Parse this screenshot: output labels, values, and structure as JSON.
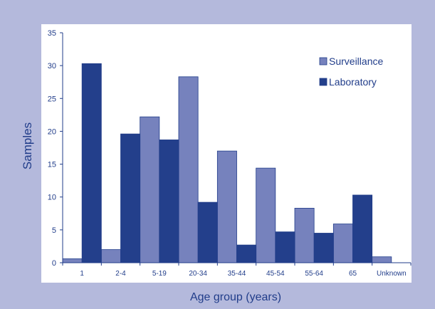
{
  "chart_data": {
    "type": "bar",
    "categories": [
      "1",
      "2-4",
      "5-19",
      "20-34",
      "35-44",
      "45-54",
      "55-64",
      "65",
      "Unknown"
    ],
    "series": [
      {
        "name": "Surveillance",
        "values": [
          0.6,
          2.0,
          22.2,
          28.3,
          17.0,
          14.4,
          8.3,
          5.9,
          0.9
        ],
        "color": "#7682bd"
      },
      {
        "name": "Laboratory",
        "values": [
          30.3,
          19.6,
          18.7,
          9.2,
          2.7,
          4.7,
          4.5,
          10.3,
          0
        ],
        "color": "#233f8b"
      }
    ],
    "xlabel": "Age group (years)",
    "ylabel": "Samples",
    "ylim": [
      0,
      35
    ],
    "yticks": [
      0,
      5,
      10,
      15,
      20,
      25,
      30,
      35
    ],
    "legend": "top-right",
    "grid": false
  },
  "colors": {
    "background": "#b4b9dc",
    "plot_background": "#ffffff",
    "text": "#213d8a"
  }
}
